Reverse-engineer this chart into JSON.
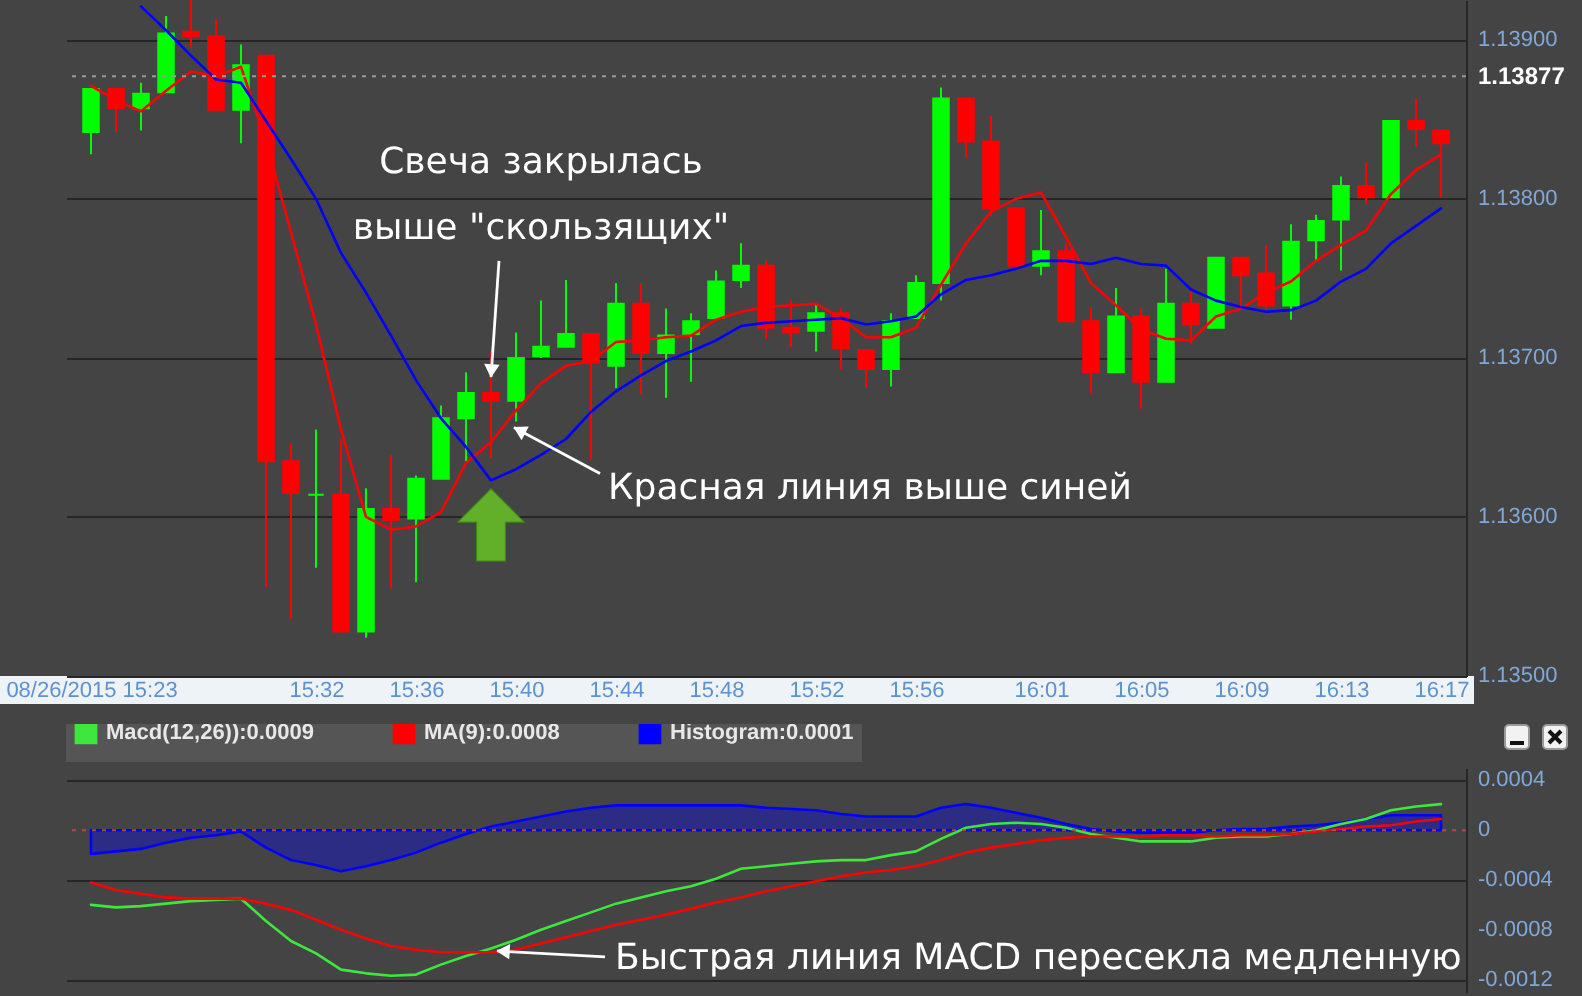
{
  "chart_data": [
    {
      "type": "candlestick",
      "x": [
        "2015-08-26T15:23",
        "2015-08-26T15:24",
        "2015-08-26T15:25",
        "2015-08-26T15:26",
        "2015-08-26T15:27",
        "2015-08-26T15:28",
        "2015-08-26T15:29",
        "2015-08-26T15:30",
        "2015-08-26T15:31",
        "2015-08-26T15:32",
        "2015-08-26T15:33",
        "2015-08-26T15:34",
        "2015-08-26T15:35",
        "2015-08-26T15:36",
        "2015-08-26T15:37",
        "2015-08-26T15:38",
        "2015-08-26T15:39",
        "2015-08-26T15:40",
        "2015-08-26T15:41",
        "2015-08-26T15:42",
        "2015-08-26T15:43",
        "2015-08-26T15:44",
        "2015-08-26T15:45",
        "2015-08-26T15:46",
        "2015-08-26T15:47",
        "2015-08-26T15:48",
        "2015-08-26T15:49",
        "2015-08-26T15:50",
        "2015-08-26T15:51",
        "2015-08-26T15:52",
        "2015-08-26T15:53",
        "2015-08-26T15:54",
        "2015-08-26T15:55",
        "2015-08-26T15:56",
        "2015-08-26T15:57",
        "2015-08-26T15:58",
        "2015-08-26T15:59",
        "2015-08-26T16:00",
        "2015-08-26T16:01",
        "2015-08-26T16:02",
        "2015-08-26T16:03",
        "2015-08-26T16:04",
        "2015-08-26T16:05",
        "2015-08-26T16:06",
        "2015-08-26T16:07",
        "2015-08-26T16:08",
        "2015-08-26T16:09",
        "2015-08-26T16:10",
        "2015-08-26T16:11",
        "2015-08-26T16:12",
        "2015-08-26T16:13",
        "2015-08-26T16:14",
        "2015-08-26T16:15",
        "2015-08-26T16:16",
        "2015-08-26T16:17"
      ],
      "ohlc": [
        [
          1.13842,
          1.13869,
          1.13828,
          1.13869
        ],
        [
          1.13869,
          1.13869,
          1.13842,
          1.13857
        ],
        [
          1.13857,
          1.13873,
          1.13843,
          1.13866
        ],
        [
          1.13867,
          1.13915,
          1.13867,
          1.13904
        ],
        [
          1.13905,
          1.13925,
          1.13895,
          1.13902
        ],
        [
          1.13902,
          1.13913,
          1.13856,
          1.13856
        ],
        [
          1.13856,
          1.13897,
          1.13835,
          1.13884
        ],
        [
          1.1389,
          1.1389,
          1.13556,
          1.13635
        ],
        [
          1.13635,
          1.13646,
          1.13536,
          1.13615
        ],
        [
          1.13614,
          1.13655,
          1.13568,
          1.13614
        ],
        [
          1.13614,
          1.13649,
          1.13528,
          1.13528
        ],
        [
          1.13528,
          1.13618,
          1.13524,
          1.13605
        ],
        [
          1.13605,
          1.13639,
          1.13555,
          1.13598
        ],
        [
          1.13599,
          1.13626,
          1.13559,
          1.13624
        ],
        [
          1.13624,
          1.1367,
          1.13624,
          1.13662
        ],
        [
          1.13662,
          1.13691,
          1.13635,
          1.13678
        ],
        [
          1.13678,
          1.13704,
          1.13637,
          1.13673
        ],
        [
          1.13673,
          1.13716,
          1.1366,
          1.137
        ],
        [
          1.13701,
          1.13736,
          1.137,
          1.13707
        ],
        [
          1.13707,
          1.13749,
          1.13707,
          1.13715
        ],
        [
          1.13715,
          1.13715,
          1.13636,
          1.13697
        ],
        [
          1.13695,
          1.13747,
          1.13681,
          1.13734
        ],
        [
          1.13734,
          1.13747,
          1.13677,
          1.13703
        ],
        [
          1.13703,
          1.13731,
          1.13675,
          1.13714
        ],
        [
          1.13715,
          1.13728,
          1.13685,
          1.13723
        ],
        [
          1.13725,
          1.13755,
          1.13725,
          1.13748
        ],
        [
          1.13749,
          1.13772,
          1.13744,
          1.13758
        ],
        [
          1.13758,
          1.13761,
          1.13712,
          1.13719
        ],
        [
          1.13719,
          1.13736,
          1.13707,
          1.13716
        ],
        [
          1.13717,
          1.13734,
          1.13704,
          1.13728
        ],
        [
          1.13728,
          1.13731,
          1.13693,
          1.13706
        ],
        [
          1.13705,
          1.13705,
          1.13681,
          1.13693
        ],
        [
          1.13693,
          1.13728,
          1.13682,
          1.13723
        ],
        [
          1.13725,
          1.13752,
          1.13725,
          1.13747
        ],
        [
          1.13747,
          1.1387,
          1.13736,
          1.13863
        ],
        [
          1.13863,
          1.13863,
          1.13826,
          1.13836
        ],
        [
          1.13836,
          1.13852,
          1.13789,
          1.13794
        ],
        [
          1.13794,
          1.13794,
          1.13758,
          1.13758
        ],
        [
          1.13758,
          1.13793,
          1.13752,
          1.13767
        ],
        [
          1.13767,
          1.13772,
          1.13723,
          1.13723
        ],
        [
          1.13723,
          1.13732,
          1.13678,
          1.13691
        ],
        [
          1.13691,
          1.13744,
          1.13691,
          1.13726
        ],
        [
          1.13726,
          1.13731,
          1.13668,
          1.13685
        ],
        [
          1.13685,
          1.13756,
          1.13685,
          1.13734
        ],
        [
          1.13734,
          1.13744,
          1.13709,
          1.13721
        ],
        [
          1.13719,
          1.13763,
          1.13719,
          1.13763
        ],
        [
          1.13763,
          1.13763,
          1.13731,
          1.13752
        ],
        [
          1.13753,
          1.13771,
          1.13731,
          1.13733
        ],
        [
          1.13733,
          1.13784,
          1.13724,
          1.13773
        ],
        [
          1.13774,
          1.1379,
          1.13761,
          1.13786
        ],
        [
          1.13787,
          1.13814,
          1.13755,
          1.13808
        ],
        [
          1.13808,
          1.13823,
          1.13797,
          1.13801
        ],
        [
          1.13801,
          1.13849,
          1.13801,
          1.13849
        ],
        [
          1.13849,
          1.13863,
          1.13833,
          1.13844
        ],
        [
          1.13843,
          1.13843,
          1.13801,
          1.13835
        ]
      ],
      "colors": [
        "#00ff00",
        "#ff0000",
        "#00ff00",
        "#00ff00",
        "#ff0000",
        "#ff0000",
        "#00ff00",
        "#ff0000",
        "#ff0000",
        "#00ff00",
        "#ff0000",
        "#00ff00",
        "#ff0000",
        "#00ff00",
        "#00ff00",
        "#00ff00",
        "#ff0000",
        "#00ff00",
        "#00ff00",
        "#00ff00",
        "#ff0000",
        "#00ff00",
        "#ff0000",
        "#00ff00",
        "#00ff00",
        "#00ff00",
        "#00ff00",
        "#ff0000",
        "#ff0000",
        "#00ff00",
        "#ff0000",
        "#ff0000",
        "#00ff00",
        "#00ff00",
        "#00ff00",
        "#ff0000",
        "#ff0000",
        "#ff0000",
        "#00ff00",
        "#ff0000",
        "#ff0000",
        "#00ff00",
        "#ff0000",
        "#00ff00",
        "#ff0000",
        "#00ff00",
        "#ff0000",
        "#ff0000",
        "#00ff00",
        "#00ff00",
        "#00ff00",
        "#ff0000",
        "#00ff00",
        "#ff0000",
        "#ff0000"
      ],
      "series": [
        {
          "type": "line",
          "color": "#ff0000",
          "values": [
            1.13871,
            1.13862,
            1.13855,
            1.13868,
            1.1388,
            1.13877,
            1.13883,
            1.13836,
            1.13779,
            1.13721,
            1.13655,
            1.136,
            1.13592,
            1.13594,
            1.13603,
            1.13634,
            1.13647,
            1.13667,
            1.13684,
            1.13695,
            1.13698,
            1.1371,
            1.13711,
            1.13713,
            1.13714,
            1.13724,
            1.13729,
            1.13732,
            1.13733,
            1.13734,
            1.13725,
            1.13713,
            1.13713,
            1.13719,
            1.13746,
            1.13772,
            1.13792,
            1.138,
            1.13804,
            1.13776,
            1.13747,
            1.13733,
            1.13718,
            1.13712,
            1.13711,
            1.13726,
            1.13731,
            1.13741,
            1.13748,
            1.13761,
            1.13771,
            1.1378,
            1.13803,
            1.13818,
            1.13828
          ]
        },
        {
          "type": "line",
          "color": "#0000ff",
          "values": [
            null,
            null,
            1.13921,
            1.13906,
            1.1389,
            1.13875,
            1.13873,
            1.13849,
            1.13825,
            1.138,
            1.13766,
            1.13741,
            1.13714,
            1.13686,
            1.13662,
            1.13644,
            1.13623,
            1.1363,
            1.13639,
            1.13649,
            1.13666,
            1.13679,
            1.13689,
            1.13698,
            1.13704,
            1.13711,
            1.1372,
            1.13722,
            1.13723,
            1.13724,
            1.13725,
            1.13721,
            1.13723,
            1.13726,
            1.1374,
            1.13749,
            1.13752,
            1.13756,
            1.13761,
            1.13761,
            1.13759,
            1.13763,
            1.13759,
            1.13758,
            1.13743,
            1.13736,
            1.13732,
            1.13729,
            1.1373,
            1.13736,
            1.13748,
            1.13756,
            1.13772,
            1.13783,
            1.13794
          ]
        }
      ],
      "xlim": [
        "2015-08-26T15:22",
        "2015-08-26T16:18"
      ],
      "xticks": [
        {
          "value": "2015-08-26T15:23",
          "label": "08/26/2015 15:23"
        },
        {
          "value": "2015-08-26T15:32",
          "label": "15:32"
        },
        {
          "value": "2015-08-26T15:36",
          "label": "15:36"
        },
        {
          "value": "2015-08-26T15:40",
          "label": "15:40"
        },
        {
          "value": "2015-08-26T15:44",
          "label": "15:44"
        },
        {
          "value": "2015-08-26T15:48",
          "label": "15:48"
        },
        {
          "value": "2015-08-26T15:52",
          "label": "15:52"
        },
        {
          "value": "2015-08-26T15:56",
          "label": "15:56"
        },
        {
          "value": "2015-08-26T16:01",
          "label": "16:01"
        },
        {
          "value": "2015-08-26T16:05",
          "label": "16:05"
        },
        {
          "value": "2015-08-26T16:09",
          "label": "16:09"
        },
        {
          "value": "2015-08-26T16:13",
          "label": "16:13"
        },
        {
          "value": "2015-08-26T16:17",
          "label": "16:17"
        }
      ],
      "ylim": [
        1.135,
        1.13925
      ],
      "yticks": [
        {
          "value": 1.135,
          "label": "1.13500"
        },
        {
          "value": 1.136,
          "label": "1.13600"
        },
        {
          "value": 1.137,
          "label": "1.13700"
        },
        {
          "value": 1.138,
          "label": "1.13800"
        },
        {
          "value": 1.139,
          "label": "1.13900"
        }
      ],
      "grid": "y",
      "ref_lines": [
        {
          "axis": "y",
          "value": 1.13877,
          "label": "1.13877",
          "color": "#9a9a9a",
          "line_style": "dotted"
        }
      ],
      "annotations": [
        {
          "text": "Свеча закрылась\nвыше \"скользящих\"",
          "x": "2015-08-26T15:39",
          "y": 1.13683
        },
        {
          "text": "Красная линия выше синей",
          "x": "2015-08-26T15:40",
          "y": 1.13655
        }
      ]
    },
    {
      "type": "line",
      "x": [
        "2015-08-26T15:23",
        "2015-08-26T15:24",
        "2015-08-26T15:25",
        "2015-08-26T15:26",
        "2015-08-26T15:27",
        "2015-08-26T15:28",
        "2015-08-26T15:29",
        "2015-08-26T15:30",
        "2015-08-26T15:31",
        "2015-08-26T15:32",
        "2015-08-26T15:33",
        "2015-08-26T15:34",
        "2015-08-26T15:35",
        "2015-08-26T15:36",
        "2015-08-26T15:37",
        "2015-08-26T15:38",
        "2015-08-26T15:39",
        "2015-08-26T15:40",
        "2015-08-26T15:41",
        "2015-08-26T15:42",
        "2015-08-26T15:43",
        "2015-08-26T15:44",
        "2015-08-26T15:45",
        "2015-08-26T15:46",
        "2015-08-26T15:47",
        "2015-08-26T15:48",
        "2015-08-26T15:49",
        "2015-08-26T15:50",
        "2015-08-26T15:51",
        "2015-08-26T15:52",
        "2015-08-26T15:53",
        "2015-08-26T15:54",
        "2015-08-26T15:55",
        "2015-08-26T15:56",
        "2015-08-26T15:57",
        "2015-08-26T15:58",
        "2015-08-26T15:59",
        "2015-08-26T16:00",
        "2015-08-26T16:01",
        "2015-08-26T16:02",
        "2015-08-26T16:03",
        "2015-08-26T16:04",
        "2015-08-26T16:05",
        "2015-08-26T16:06",
        "2015-08-26T16:07",
        "2015-08-26T16:08",
        "2015-08-26T16:09",
        "2015-08-26T16:10",
        "2015-08-26T16:11",
        "2015-08-26T16:12",
        "2015-08-26T16:13",
        "2015-08-26T16:14",
        "2015-08-26T16:15",
        "2015-08-26T16:16",
        "2015-08-26T16:17"
      ],
      "series": [
        {
          "name": "Macd(12,26)):0.0009",
          "type": "line",
          "color": "#3ee63e",
          "values": [
            -0.0006,
            -0.00062,
            -0.00061,
            -0.00059,
            -0.00057,
            -0.00056,
            -0.00055,
            -0.00073,
            -0.00089,
            -0.00099,
            -0.00112,
            -0.00115,
            -0.00117,
            -0.00116,
            -0.00108,
            -0.00101,
            -0.00095,
            -0.00088,
            -0.0008,
            -0.00073,
            -0.00066,
            -0.00059,
            -0.00054,
            -0.00049,
            -0.00045,
            -0.00039,
            -0.00031,
            -0.00029,
            -0.00027,
            -0.00025,
            -0.00024,
            -0.00024,
            -0.0002,
            -0.00017,
            -7e-05,
            2e-05,
            5e-05,
            6e-05,
            5e-05,
            2e-05,
            -3e-05,
            -6e-05,
            -9e-05,
            -9e-05,
            -9e-05,
            -6e-05,
            -5e-05,
            -5e-05,
            -3e-05,
            0,
            5e-05,
            9e-05,
            0.00016,
            0.00019,
            0.00021
          ]
        },
        {
          "name": "MA(9):0.0008",
          "type": "line",
          "color": "#ff0000",
          "values": [
            -0.00042,
            -0.00048,
            -0.00051,
            -0.00054,
            -0.00055,
            -0.00055,
            -0.00055,
            -0.00059,
            -0.00064,
            -0.00072,
            -0.0008,
            -0.00087,
            -0.00093,
            -0.00096,
            -0.00098,
            -0.00098,
            -0.00098,
            -0.00096,
            -0.00091,
            -0.00086,
            -0.00081,
            -0.00076,
            -0.00072,
            -0.00068,
            -0.00063,
            -0.00058,
            -0.00054,
            -0.00049,
            -0.00045,
            -0.00041,
            -0.00037,
            -0.00034,
            -0.00032,
            -0.00029,
            -0.00024,
            -0.00018,
            -0.00014,
            -0.00011,
            -8e-05,
            -6e-05,
            -5e-05,
            -5e-05,
            -5e-05,
            -4e-05,
            -4e-05,
            -5e-05,
            -4e-05,
            -4e-05,
            -3e-05,
            -1e-05,
            1e-05,
            3e-05,
            4e-05,
            7e-05,
            9e-05
          ]
        },
        {
          "name": "Histogram:0.0001",
          "type": "area",
          "color": "#0000ff",
          "values": [
            -0.00019,
            -0.00017,
            -0.00015,
            -0.0001,
            -6e-05,
            -4e-05,
            -1e-05,
            -0.00014,
            -0.00024,
            -0.00028,
            -0.00033,
            -0.00029,
            -0.00024,
            -0.00018,
            -0.0001,
            -3e-05,
            3e-05,
            7e-05,
            0.00011,
            0.00015,
            0.00018,
            0.0002,
            0.0002,
            0.0002,
            0.0002,
            0.0002,
            0.0002,
            0.00018,
            0.00017,
            0.00016,
            0.00013,
            0.00011,
            0.00011,
            0.00011,
            0.00018,
            0.00021,
            0.00018,
            0.00014,
            0.0001,
            5e-05,
            1e-05,
            -1e-05,
            -2e-05,
            -2e-05,
            -2e-05,
            0,
            1e-05,
            1e-05,
            3e-05,
            4e-05,
            6e-05,
            9e-05,
            0.00012,
            0.00012,
            0.00012
          ]
        }
      ],
      "xlim": [
        "2015-08-26T15:22",
        "2015-08-26T16:18"
      ],
      "ylim": [
        -0.0013,
        0.0005
      ],
      "yticks": [
        0.0004,
        0,
        -0.0004,
        -0.0008,
        -0.0012
      ],
      "grid": "y",
      "tick_labels": "y",
      "legend": "top",
      "ref_lines": [
        {
          "axis": "y",
          "value": 0,
          "color": "#b04a4a",
          "line_style": "dotted"
        }
      ],
      "annotations": [
        {
          "text": "Быстрая линия MACD пересекла медленную",
          "x": "2015-08-26T15:39",
          "y": -0.00097
        }
      ]
    }
  ]
}
